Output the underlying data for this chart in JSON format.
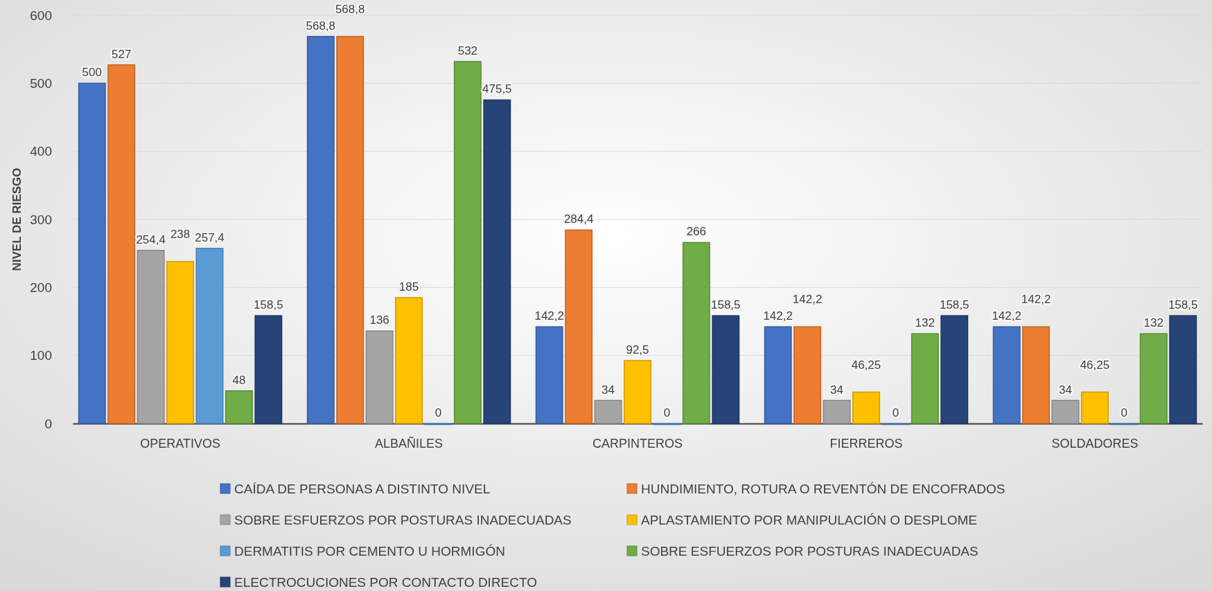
{
  "chart_data": {
    "type": "bar",
    "ylabel": "NIVEL DE RIESGO",
    "categories": [
      "OPERATIVOS",
      "ALBAÑILES",
      "CARPINTEROS",
      "FIERREROS",
      "SOLDADORES"
    ],
    "ylim": [
      0,
      600
    ],
    "yticks": [
      0,
      100,
      200,
      300,
      400,
      500,
      600
    ],
    "grid": "y",
    "legend": "bottom",
    "series": [
      {
        "name": "CAÍDA DE PERSONAS A DISTINTO NIVEL",
        "color": "#4472c4",
        "values": [
          500,
          568.8,
          142.2,
          142.2,
          142.2
        ],
        "value_labels": [
          "500",
          "568,8",
          "142,2",
          "142,2",
          "142,2"
        ]
      },
      {
        "name": "HUNDIMIENTO, ROTURA O REVENTÓN DE ENCOFRADOS",
        "color": "#ed7d31",
        "values": [
          527,
          568.8,
          284.4,
          142.2,
          142.2
        ],
        "value_labels": [
          "527",
          "568,8",
          "284,4",
          "142,2",
          "142,2"
        ]
      },
      {
        "name": "SOBRE ESFUERZOS POR POSTURAS INADECUADAS",
        "color": "#a5a5a5",
        "values": [
          254.4,
          136,
          34,
          34,
          34
        ],
        "value_labels": [
          "254,4",
          "136",
          "34",
          "34",
          "34"
        ]
      },
      {
        "name": "APLASTAMIENTO POR MANIPULACIÓN O DESPLOME",
        "color": "#ffc000",
        "values": [
          238,
          185,
          92.5,
          46.25,
          46.25
        ],
        "value_labels": [
          "238",
          "185",
          "92,5",
          "46,25",
          "46,25"
        ]
      },
      {
        "name": "DERMATITIS POR CEMENTO U HORMIGÓN",
        "color": "#5b9bd5",
        "values": [
          257.4,
          0,
          0,
          0,
          0
        ],
        "value_labels": [
          "257,4",
          "0",
          "0",
          "0",
          "0"
        ]
      },
      {
        "name": "SOBRE ESFUERZOS POR POSTURAS INADECUADAS",
        "color": "#70ad47",
        "values": [
          48,
          532,
          266,
          132,
          132
        ],
        "value_labels": [
          "48",
          "532",
          "266",
          "132",
          "132"
        ]
      },
      {
        "name": "ELECTROCUCIONES POR CONTACTO DIRECTO",
        "color": "#264478",
        "values": [
          158.5,
          475.5,
          158.5,
          158.5,
          158.5
        ],
        "value_labels": [
          "158,5",
          "475,5",
          "158,5",
          "158,5",
          "158,5"
        ]
      }
    ]
  }
}
